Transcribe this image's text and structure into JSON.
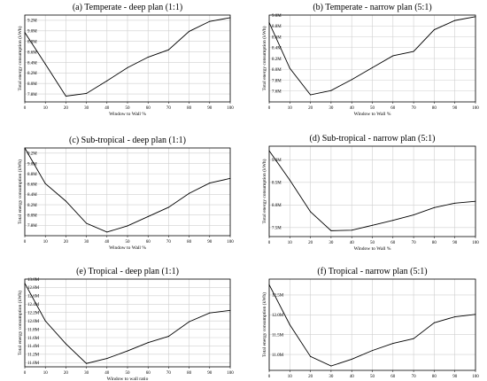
{
  "chart_data": [
    {
      "type": "line",
      "title": "(a) Temperate - deep plan (1:1)",
      "xlabel": "Window to Wall %",
      "ylabel": "Total energy consumption (kWh)",
      "x": [
        0,
        10,
        20,
        30,
        40,
        50,
        60,
        70,
        80,
        90,
        100
      ],
      "y": [
        8.97,
        8.37,
        7.76,
        7.81,
        8.05,
        8.3,
        8.5,
        8.64,
        8.99,
        9.18,
        9.25
      ],
      "ylim": [
        7.65,
        9.3
      ],
      "yticks": [
        7.8,
        8.0,
        8.2,
        8.4,
        8.6,
        8.8,
        9.0,
        9.2
      ],
      "ytick_labels": [
        "7.8M",
        "8.0M",
        "8.2M",
        "8.4M",
        "8.6M",
        "8.8M",
        "9.0M",
        "9.2M"
      ],
      "xticks": [
        0,
        10,
        20,
        30,
        40,
        50,
        60,
        70,
        80,
        90,
        100
      ],
      "grid": true
    },
    {
      "type": "line",
      "title": "(b) Temperate - narrow plan (5:1)",
      "xlabel": "Window to Wall %",
      "ylabel": "Total energy consumption (kWh)",
      "x": [
        0,
        10,
        20,
        30,
        40,
        50,
        60,
        70,
        80,
        90,
        100
      ],
      "y": [
        8.86,
        8.02,
        7.53,
        7.61,
        7.81,
        8.03,
        8.25,
        8.33,
        8.73,
        8.9,
        8.97
      ],
      "ylim": [
        7.4,
        9.0
      ],
      "yticks": [
        7.6,
        7.8,
        8.0,
        8.2,
        8.4,
        8.6,
        8.8,
        9.0
      ],
      "ytick_labels": [
        "7.6M",
        "7.8M",
        "8.0M",
        "8.2M",
        "8.4M",
        "8.6M",
        "8.8M",
        "9.0M"
      ],
      "xticks": [
        0,
        10,
        20,
        30,
        40,
        50,
        60,
        70,
        80,
        90,
        100
      ],
      "grid": true
    },
    {
      "type": "line",
      "title": "(c) Sub-tropical - deep plan (1:1)",
      "xlabel": "Window to Wall %",
      "ylabel": "Total energy consumption (kWh)",
      "x": [
        0,
        10,
        20,
        30,
        40,
        50,
        60,
        70,
        80,
        90,
        100
      ],
      "y": [
        9.3,
        8.61,
        8.27,
        7.84,
        7.67,
        7.79,
        7.97,
        8.15,
        8.42,
        8.62,
        8.71
      ],
      "ylim": [
        7.6,
        9.3
      ],
      "yticks": [
        7.8,
        8.0,
        8.2,
        8.4,
        8.6,
        8.8,
        9.0,
        9.2
      ],
      "ytick_labels": [
        "7.8M",
        "8.0M",
        "8.2M",
        "8.4M",
        "8.6M",
        "8.8M",
        "9.0M",
        "9.2M"
      ],
      "xticks": [
        0,
        10,
        20,
        30,
        40,
        50,
        60,
        70,
        80,
        90,
        100
      ],
      "grid": true
    },
    {
      "type": "line",
      "title": "(d) Sub-tropical - narrow plan (5:1)",
      "xlabel": "Window to Wall %",
      "ylabel": "Total energy consumption (kWh)",
      "x": [
        0,
        10,
        20,
        30,
        40,
        50,
        60,
        70,
        80,
        90,
        100
      ],
      "y": [
        9.2,
        8.55,
        7.85,
        7.43,
        7.44,
        7.55,
        7.66,
        7.78,
        7.94,
        8.04,
        8.08
      ],
      "ylim": [
        7.3,
        9.3
      ],
      "yticks": [
        7.5,
        8.0,
        8.5,
        9.0
      ],
      "ytick_labels": [
        "7.5M",
        "8.0M",
        "8.5M",
        "9.0M"
      ],
      "xticks": [
        0,
        10,
        20,
        30,
        40,
        50,
        60,
        70,
        80,
        90,
        100
      ],
      "grid": true
    },
    {
      "type": "line",
      "title": "(e) Tropical - deep plan (1:1)",
      "xlabel": "Window to wall ratio",
      "ylabel": "Total energy consumption (kWh)",
      "x": [
        0,
        10,
        20,
        30,
        40,
        50,
        60,
        70,
        80,
        90,
        100
      ],
      "y": [
        12.9,
        12.0,
        11.45,
        10.98,
        11.1,
        11.28,
        11.48,
        11.63,
        11.98,
        12.19,
        12.25
      ],
      "ylim": [
        10.9,
        13.0
      ],
      "yticks": [
        11.0,
        11.2,
        11.4,
        11.6,
        11.8,
        12.0,
        12.2,
        12.4,
        12.6,
        12.8,
        13.0
      ],
      "ytick_labels": [
        "11.0M",
        "11.2M",
        "11.4M",
        "11.6M",
        "11.8M",
        "12.0M",
        "12.2M",
        "12.4M",
        "12.6M",
        "12.8M",
        "13.0M"
      ],
      "xticks": [
        0,
        10,
        20,
        30,
        40,
        50,
        60,
        70,
        80,
        90,
        100
      ],
      "grid": true
    },
    {
      "type": "line",
      "title": "(f) Tropical - narrow plan (5:1)",
      "xlabel": "",
      "ylabel": "Total energy consumption (kWh)",
      "x": [
        0,
        10,
        20,
        30,
        40,
        50,
        60,
        70,
        80,
        90,
        100
      ],
      "y": [
        12.76,
        11.75,
        10.95,
        10.71,
        10.88,
        11.1,
        11.28,
        11.4,
        11.8,
        11.95,
        12.01
      ],
      "ylim": [
        10.6,
        12.9
      ],
      "yticks": [
        11.0,
        11.5,
        12.0,
        12.5
      ],
      "ytick_labels": [
        "11.0M",
        "11.5M",
        "12.0M",
        "12.5M"
      ],
      "xticks": [
        0,
        10,
        20,
        30,
        40,
        50,
        60,
        70,
        80,
        90,
        100
      ],
      "grid": true
    }
  ]
}
